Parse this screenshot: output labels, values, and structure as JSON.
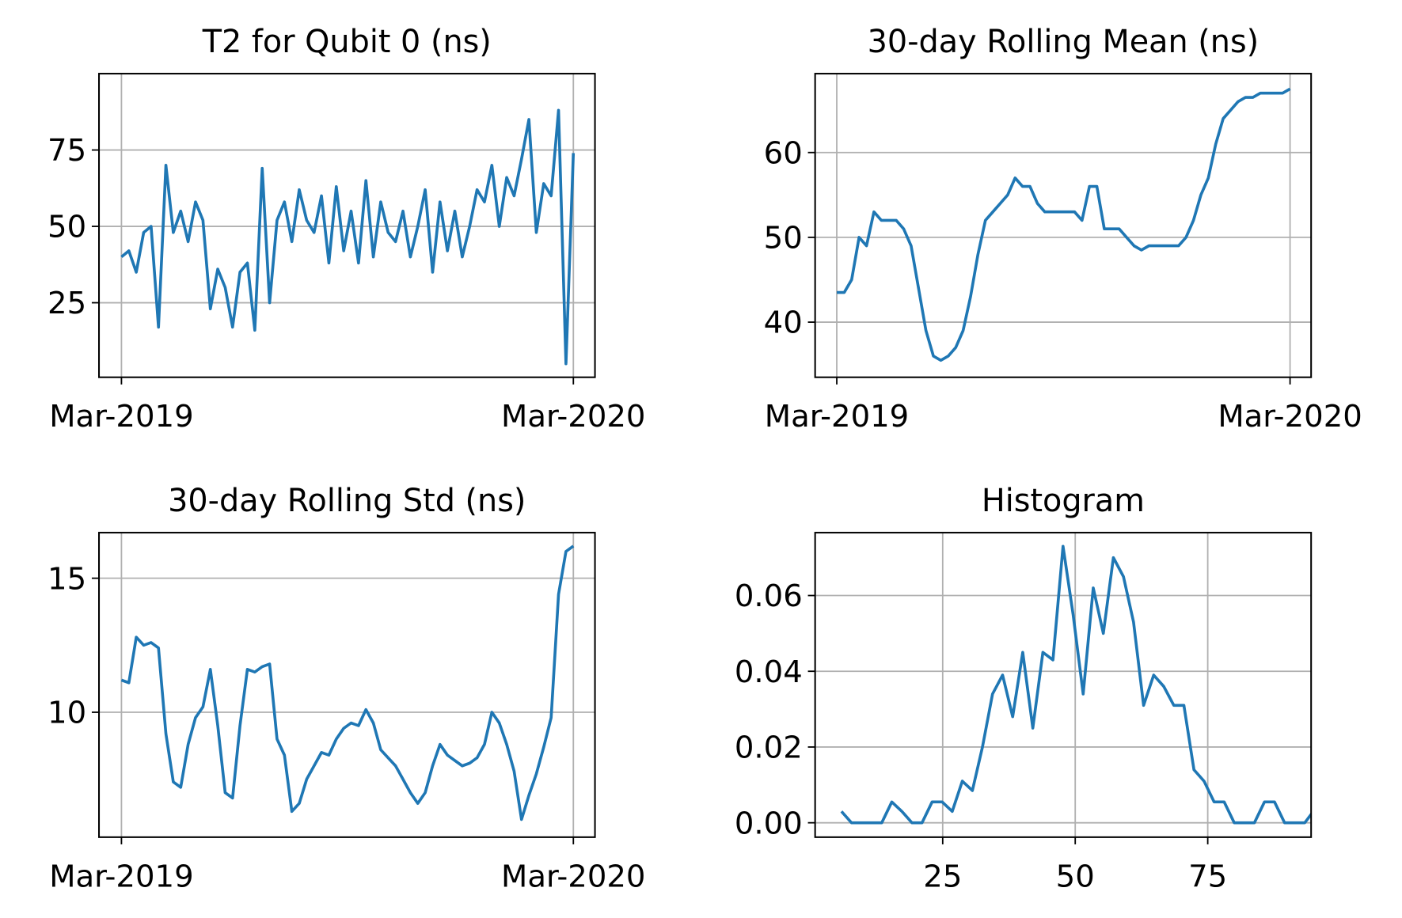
{
  "chart_data": [
    {
      "type": "line",
      "title": "T2 for Qubit 0 (ns)",
      "color": "#1f77b4",
      "grid": true,
      "x": [
        0,
        6,
        12,
        18,
        24,
        30,
        36,
        42,
        48,
        54,
        60,
        66,
        72,
        78,
        84,
        90,
        96,
        102,
        108,
        114,
        120,
        126,
        132,
        138,
        144,
        150,
        156,
        162,
        168,
        174,
        180,
        186,
        192,
        198,
        204,
        210,
        216,
        222,
        228,
        234,
        240,
        246,
        252,
        258,
        264,
        270,
        276,
        282,
        288,
        294,
        300,
        306,
        312,
        318,
        324,
        330,
        336,
        342,
        348,
        354,
        360,
        366
      ],
      "values": [
        40,
        42,
        35,
        48,
        50,
        17,
        70,
        48,
        55,
        45,
        58,
        52,
        23,
        36,
        30,
        17,
        35,
        38,
        16,
        69,
        25,
        52,
        58,
        45,
        62,
        52,
        48,
        60,
        38,
        63,
        42,
        55,
        38,
        65,
        40,
        58,
        48,
        45,
        55,
        40,
        50,
        62,
        35,
        58,
        42,
        55,
        40,
        50,
        62,
        58,
        70,
        50,
        66,
        60,
        72,
        85,
        48,
        64,
        60,
        88,
        5,
        74
      ],
      "xlim": [
        -18.2,
        383.5
      ],
      "xticks": [
        {
          "value": 0,
          "label": "Mar-2019"
        },
        {
          "value": 366,
          "label": "Mar-2020"
        }
      ],
      "ylim": [
        0.6,
        100
      ],
      "yticks": [
        25,
        50,
        75
      ]
    },
    {
      "type": "line",
      "title": "30-day Rolling Mean (ns)",
      "color": "#1f77b4",
      "grid": true,
      "x": [
        0,
        6,
        12,
        18,
        24,
        30,
        36,
        42,
        48,
        54,
        60,
        66,
        72,
        78,
        84,
        90,
        96,
        102,
        108,
        114,
        120,
        126,
        132,
        138,
        144,
        150,
        156,
        162,
        168,
        174,
        180,
        186,
        192,
        198,
        204,
        210,
        216,
        222,
        228,
        234,
        240,
        246,
        252,
        258,
        264,
        270,
        276,
        282,
        288,
        294,
        300,
        306,
        312,
        318,
        324,
        330,
        336,
        342,
        348,
        354,
        360,
        366
      ],
      "values": [
        43.5,
        43.5,
        45,
        50,
        49,
        53,
        52,
        52,
        52,
        51,
        49,
        44,
        39,
        36,
        35.5,
        36,
        37,
        39,
        43,
        48,
        52,
        53,
        54,
        55,
        57,
        56,
        56,
        54,
        53,
        53,
        53,
        53,
        53,
        52,
        56,
        56,
        51,
        51,
        51,
        50,
        49,
        48.5,
        49,
        49,
        49,
        49,
        49,
        50,
        52,
        55,
        57,
        61,
        64,
        65,
        66,
        66.5,
        66.5,
        67,
        67,
        67,
        67,
        67.5
      ],
      "xlim": [
        -17.5,
        383
      ],
      "xticks": [
        {
          "value": 0,
          "label": "Mar-2019"
        },
        {
          "value": 366,
          "label": "Mar-2020"
        }
      ],
      "ylim": [
        33.5,
        69.3
      ],
      "yticks": [
        40,
        50,
        60
      ]
    },
    {
      "type": "line",
      "title": "30-day Rolling Std (ns)",
      "color": "#1f77b4",
      "grid": true,
      "x": [
        0,
        6,
        12,
        18,
        24,
        30,
        36,
        42,
        48,
        54,
        60,
        66,
        72,
        78,
        84,
        90,
        96,
        102,
        108,
        114,
        120,
        126,
        132,
        138,
        144,
        150,
        156,
        162,
        168,
        174,
        180,
        186,
        192,
        198,
        204,
        210,
        216,
        222,
        228,
        234,
        240,
        246,
        252,
        258,
        264,
        270,
        276,
        282,
        288,
        294,
        300,
        306,
        312,
        318,
        324,
        330,
        336,
        342,
        348,
        354,
        360,
        366
      ],
      "values": [
        11.2,
        11.1,
        12.8,
        12.5,
        12.6,
        12.4,
        9.2,
        7.4,
        7.2,
        8.8,
        9.8,
        10.2,
        11.6,
        9.5,
        7,
        6.8,
        9.5,
        11.6,
        11.5,
        11.7,
        11.8,
        9,
        8.4,
        6.3,
        6.6,
        7.5,
        8,
        8.5,
        8.4,
        9,
        9.4,
        9.6,
        9.5,
        10.1,
        9.6,
        8.6,
        8.3,
        8,
        7.5,
        7,
        6.6,
        7,
        8,
        8.8,
        8.4,
        8.2,
        8,
        8.1,
        8.3,
        8.8,
        10,
        9.6,
        8.8,
        7.8,
        6,
        6.9,
        7.7,
        8.7,
        9.8,
        14.4,
        16,
        16.2
      ],
      "xlim": [
        -18.2,
        383.5
      ],
      "xticks": [
        {
          "value": 0,
          "label": "Mar-2019"
        },
        {
          "value": 366,
          "label": "Mar-2020"
        }
      ],
      "ylim": [
        5.34,
        16.7
      ],
      "yticks": [
        10,
        15
      ]
    },
    {
      "type": "line",
      "title": "Histogram",
      "color": "#1f77b4",
      "grid": true,
      "x": [
        5.9,
        7.8,
        9.7,
        11.6,
        13.5,
        15.4,
        17.3,
        19.2,
        21.1,
        23.0,
        24.9,
        26.8,
        28.7,
        30.6,
        32.5,
        34.4,
        36.3,
        38.2,
        40.1,
        42.0,
        43.9,
        45.8,
        47.7,
        49.6,
        51.5,
        53.4,
        55.3,
        57.2,
        59.1,
        61.0,
        62.9,
        64.8,
        66.7,
        68.6,
        70.5,
        72.4,
        74.3,
        76.2,
        78.1,
        80.0,
        81.9,
        83.8,
        85.7,
        87.6,
        89.5,
        91.4,
        93.3,
        95.2
      ],
      "values": [
        0.003,
        0,
        0,
        0,
        0,
        0.0055,
        0.003,
        0,
        0,
        0.0055,
        0.0055,
        0.003,
        0.011,
        0.0085,
        0.02,
        0.034,
        0.039,
        0.028,
        0.045,
        0.025,
        0.045,
        0.043,
        0.073,
        0.055,
        0.034,
        0.062,
        0.05,
        0.07,
        0.065,
        0.053,
        0.031,
        0.039,
        0.036,
        0.031,
        0.031,
        0.014,
        0.011,
        0.0055,
        0.0055,
        0,
        0,
        0,
        0.0055,
        0.0055,
        0,
        0,
        0,
        0.0035
      ],
      "xlim": [
        0.93,
        94.5
      ],
      "xticks": [
        25,
        50,
        75
      ],
      "ylim": [
        -0.0038,
        0.0766
      ],
      "yticks": [
        {
          "value": 0,
          "label": "0.00"
        },
        {
          "value": 0.02,
          "label": "0.02"
        },
        {
          "value": 0.04,
          "label": "0.04"
        },
        {
          "value": 0.06,
          "label": "0.06"
        }
      ]
    }
  ]
}
